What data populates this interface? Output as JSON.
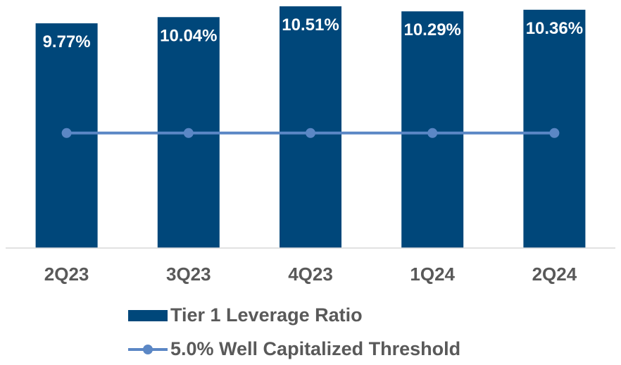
{
  "chart_data": {
    "type": "bar",
    "categories": [
      "2Q23",
      "3Q23",
      "4Q23",
      "1Q24",
      "2Q24"
    ],
    "series": [
      {
        "name": "Tier 1 Leverage Ratio",
        "kind": "bar",
        "color": "#00477A",
        "values": [
          9.77,
          10.04,
          10.51,
          10.29,
          10.36
        ],
        "labels": [
          "9.77%",
          "10.04%",
          "10.51%",
          "10.29%",
          "10.36%"
        ]
      },
      {
        "name": "5.0% Well Capitalized Threshold",
        "kind": "line",
        "color": "#5B87C5",
        "values": [
          5.0,
          5.0,
          5.0,
          5.0,
          5.0
        ]
      }
    ],
    "ylim": [
      0,
      10.6
    ],
    "grid": false,
    "legend_position": "bottom"
  }
}
